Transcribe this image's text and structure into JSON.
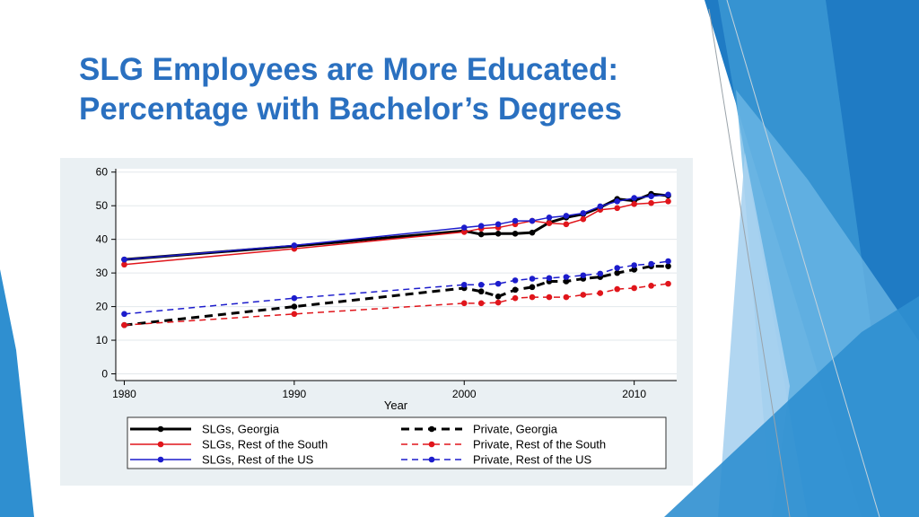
{
  "slide": {
    "title_line1": "SLG Employees are More Educated:",
    "title_line2": "Percentage with Bachelor’s Degrees",
    "title_color": "#2a70c0",
    "accent_colors": [
      "#1f7bc4",
      "#3fa0d8",
      "#6fb8e6",
      "#a9d2ef"
    ]
  },
  "chart_data": {
    "type": "line",
    "xlabel": "Year",
    "ylabel": "",
    "xlim": [
      1979.5,
      2012.5
    ],
    "ylim": [
      -2,
      61
    ],
    "xticks": [
      1980,
      1990,
      2000,
      2010
    ],
    "yticks": [
      0,
      10,
      20,
      30,
      40,
      50,
      60
    ],
    "grid": "horizontal",
    "legend_position": "bottom",
    "series": [
      {
        "name": "SLGs, Georgia",
        "color": "#000000",
        "dash": "solid",
        "stroke_width": 3,
        "points": [
          [
            1980,
            34.0
          ],
          [
            1990,
            38.0
          ],
          [
            2000,
            42.5
          ],
          [
            2001,
            41.5
          ],
          [
            2002,
            41.7
          ],
          [
            2003,
            41.7
          ],
          [
            2004,
            42.0
          ],
          [
            2005,
            45.0
          ],
          [
            2006,
            46.5
          ],
          [
            2007,
            47.5
          ],
          [
            2008,
            49.5
          ],
          [
            2009,
            52.0
          ],
          [
            2010,
            51.5
          ],
          [
            2011,
            53.5
          ],
          [
            2012,
            53.0
          ]
        ]
      },
      {
        "name": "SLGs, Rest of the South",
        "color": "#e0151b",
        "dash": "solid",
        "stroke_width": 1.5,
        "points": [
          [
            1980,
            32.5
          ],
          [
            1990,
            37.2
          ],
          [
            2000,
            42.2
          ],
          [
            2001,
            43.2
          ],
          [
            2002,
            43.5
          ],
          [
            2003,
            44.5
          ],
          [
            2004,
            45.5
          ],
          [
            2005,
            44.8
          ],
          [
            2006,
            44.5
          ],
          [
            2007,
            46.0
          ],
          [
            2008,
            48.8
          ],
          [
            2009,
            49.3
          ],
          [
            2010,
            50.5
          ],
          [
            2011,
            50.8
          ],
          [
            2012,
            51.3
          ]
        ]
      },
      {
        "name": "SLGs, Rest of the US",
        "color": "#1c1ccc",
        "dash": "solid",
        "stroke_width": 1.5,
        "points": [
          [
            1980,
            34.0
          ],
          [
            1990,
            38.2
          ],
          [
            2000,
            43.5
          ],
          [
            2001,
            44.0
          ],
          [
            2002,
            44.5
          ],
          [
            2003,
            45.5
          ],
          [
            2004,
            45.5
          ],
          [
            2005,
            46.5
          ],
          [
            2006,
            47.0
          ],
          [
            2007,
            47.8
          ],
          [
            2008,
            49.8
          ],
          [
            2009,
            51.3
          ],
          [
            2010,
            52.3
          ],
          [
            2011,
            52.8
          ],
          [
            2012,
            53.3
          ]
        ]
      },
      {
        "name": "Private, Georgia",
        "color": "#000000",
        "dash": "dashed",
        "stroke_width": 3,
        "points": [
          [
            1980,
            14.5
          ],
          [
            1990,
            20.0
          ],
          [
            2000,
            25.5
          ],
          [
            2001,
            24.5
          ],
          [
            2002,
            23.0
          ],
          [
            2003,
            25.0
          ],
          [
            2004,
            25.8
          ],
          [
            2005,
            27.5
          ],
          [
            2006,
            27.5
          ],
          [
            2007,
            28.3
          ],
          [
            2008,
            28.8
          ],
          [
            2009,
            30.0
          ],
          [
            2010,
            31.0
          ],
          [
            2011,
            32.0
          ],
          [
            2012,
            32.0
          ]
        ]
      },
      {
        "name": "Private, Rest of the South",
        "color": "#e0151b",
        "dash": "dashed",
        "stroke_width": 1.5,
        "points": [
          [
            1980,
            14.5
          ],
          [
            1990,
            17.8
          ],
          [
            2000,
            21.0
          ],
          [
            2001,
            21.0
          ],
          [
            2002,
            21.2
          ],
          [
            2003,
            22.5
          ],
          [
            2004,
            22.8
          ],
          [
            2005,
            22.8
          ],
          [
            2006,
            22.8
          ],
          [
            2007,
            23.5
          ],
          [
            2008,
            24.0
          ],
          [
            2009,
            25.2
          ],
          [
            2010,
            25.5
          ],
          [
            2011,
            26.2
          ],
          [
            2012,
            26.8
          ]
        ]
      },
      {
        "name": "Private, Rest of the US",
        "color": "#1c1ccc",
        "dash": "dashed",
        "stroke_width": 1.5,
        "points": [
          [
            1980,
            17.8
          ],
          [
            1990,
            22.5
          ],
          [
            2000,
            26.5
          ],
          [
            2001,
            26.5
          ],
          [
            2002,
            26.8
          ],
          [
            2003,
            27.8
          ],
          [
            2004,
            28.3
          ],
          [
            2005,
            28.5
          ],
          [
            2006,
            28.8
          ],
          [
            2007,
            29.3
          ],
          [
            2008,
            29.8
          ],
          [
            2009,
            31.5
          ],
          [
            2010,
            32.3
          ],
          [
            2011,
            32.7
          ],
          [
            2012,
            33.5
          ]
        ]
      }
    ]
  }
}
